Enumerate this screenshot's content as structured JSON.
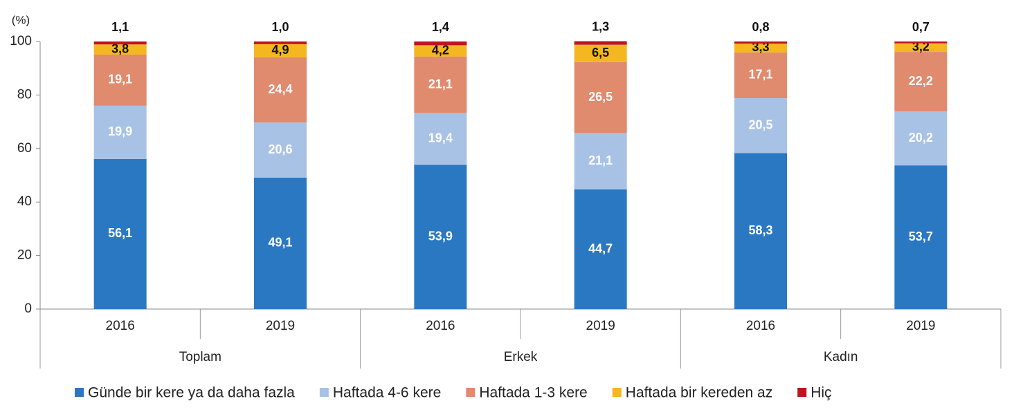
{
  "chart_data": {
    "type": "stacked_bar",
    "ylabel": "(%)",
    "categories": [
      "2016",
      "2019",
      "2016",
      "2019",
      "2016",
      "2019"
    ],
    "groups": [
      "Toplam",
      "Erkek",
      "Kadın"
    ],
    "ylim": [
      0,
      100
    ],
    "yticks": [
      0,
      20,
      40,
      60,
      80,
      100
    ],
    "series": [
      {
        "name": "Günde bir kere ya da daha fazla",
        "color": "#2b78c2",
        "values": [
          56.1,
          49.1,
          53.9,
          44.7,
          58.3,
          53.7
        ],
        "value_labels": [
          "56,1",
          "49,1",
          "53,9",
          "44,7",
          "58,3",
          "53,7"
        ]
      },
      {
        "name": "Haftada 4-6 kere",
        "color": "#a8c2e6",
        "values": [
          19.9,
          20.6,
          19.4,
          21.1,
          20.5,
          20.2
        ],
        "value_labels": [
          "19,9",
          "20,6",
          "19,4",
          "21,1",
          "20,5",
          "20,2"
        ]
      },
      {
        "name": "Haftada 1-3 kere",
        "color": "#e08a6e",
        "values": [
          19.1,
          24.4,
          21.1,
          26.5,
          17.1,
          22.2
        ],
        "value_labels": [
          "19,1",
          "24,4",
          "21,1",
          "26,5",
          "17,1",
          "22,2"
        ]
      },
      {
        "name": "Haftada bir kereden az",
        "color": "#f5b71f",
        "values": [
          3.8,
          4.9,
          4.2,
          6.5,
          3.3,
          3.2
        ],
        "value_labels": [
          "3,8",
          "4,9",
          "4,2",
          "6,5",
          "3,3",
          "3,2"
        ]
      },
      {
        "name": "Hiç",
        "color": "#be1420",
        "values": [
          1.1,
          1.0,
          1.4,
          1.3,
          0.8,
          0.7
        ],
        "value_labels": [
          "1,1",
          "1,0",
          "1,4",
          "1,3",
          "0,8",
          "0,7"
        ]
      }
    ]
  }
}
